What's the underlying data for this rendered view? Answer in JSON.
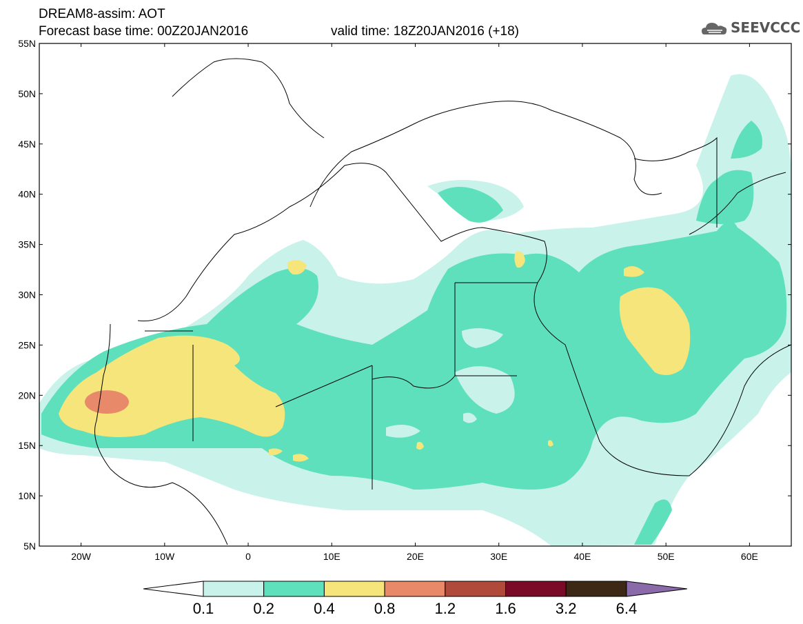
{
  "header": {
    "line1": "DREAM8-assim: AOT",
    "line2": "Forecast base time: 00Z20JAN2016",
    "valid": "valid time: 18Z20JAN2016 (+18)"
  },
  "logo": {
    "text": "SEEVCCC",
    "icon": "cloud-icon"
  },
  "map": {
    "lat_labels": [
      "55N",
      "50N",
      "45N",
      "40N",
      "35N",
      "30N",
      "25N",
      "20N",
      "15N",
      "10N",
      "5N"
    ],
    "lon_labels": [
      "20W",
      "10W",
      "0",
      "10E",
      "20E",
      "30E",
      "40E",
      "50E",
      "60E"
    ],
    "extent": {
      "lon": [
        -25,
        65
      ],
      "lat": [
        5,
        55
      ]
    }
  },
  "colorbar": {
    "levels": [
      "0.1",
      "0.2",
      "0.4",
      "0.8",
      "1.2",
      "1.6",
      "3.2",
      "6.4"
    ],
    "colors": [
      "#ffffff",
      "#c8f2ea",
      "#5ee0bc",
      "#f6e57a",
      "#e8896a",
      "#b04a3a",
      "#7a0a28",
      "#3c2814",
      "#8a6aa8"
    ]
  }
}
